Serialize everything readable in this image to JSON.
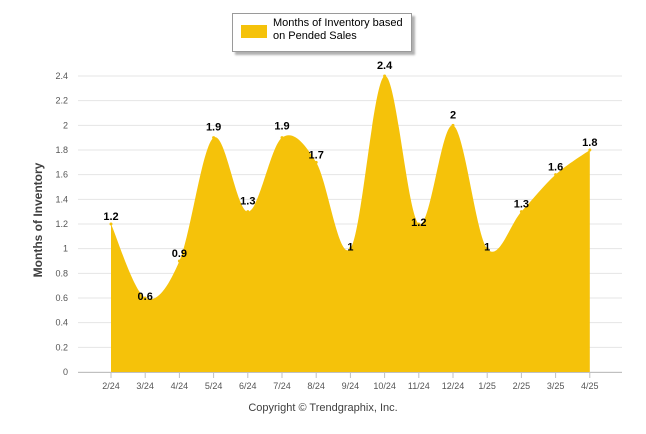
{
  "chart_data": {
    "type": "area",
    "categories": [
      "2/24",
      "3/24",
      "4/24",
      "5/24",
      "6/24",
      "7/24",
      "8/24",
      "9/24",
      "10/24",
      "11/24",
      "12/24",
      "1/25",
      "2/25",
      "3/25",
      "4/25"
    ],
    "series": [
      {
        "name": "Months of Inventory based on Pended Sales",
        "values": [
          1.2,
          0.6,
          0.9,
          1.9,
          1.3,
          1.9,
          1.7,
          1,
          2.4,
          1.2,
          2,
          1,
          1.3,
          1.6,
          1.8
        ],
        "color": "#f5c20a"
      }
    ],
    "data_labels": [
      "1.2",
      "0.6",
      "0.9",
      "1.9",
      "1.3",
      "1.9",
      "1.7",
      "1",
      "2.4",
      "1.2",
      "2",
      "1",
      "1.3",
      "1.6",
      "1.8"
    ],
    "yticks": [
      "0",
      "0.2",
      "0.4",
      "0.6",
      "0.8",
      "1",
      "1.2",
      "1.4",
      "1.6",
      "1.8",
      "2",
      "2.2",
      "2.4"
    ],
    "ylim": [
      0,
      2.4
    ],
    "ylabel": "Months of Inventory",
    "xlabel": "",
    "title": "",
    "grid": true,
    "legend": "top-center"
  },
  "legend": {
    "label": "Months of Inventory based on Pended Sales"
  },
  "footer": {
    "copyright": "Copyright © Trendgraphix, Inc."
  },
  "colors": {
    "area": "#f5c20a",
    "grid": "#e4e4e4",
    "axis": "#c0c0c0"
  }
}
